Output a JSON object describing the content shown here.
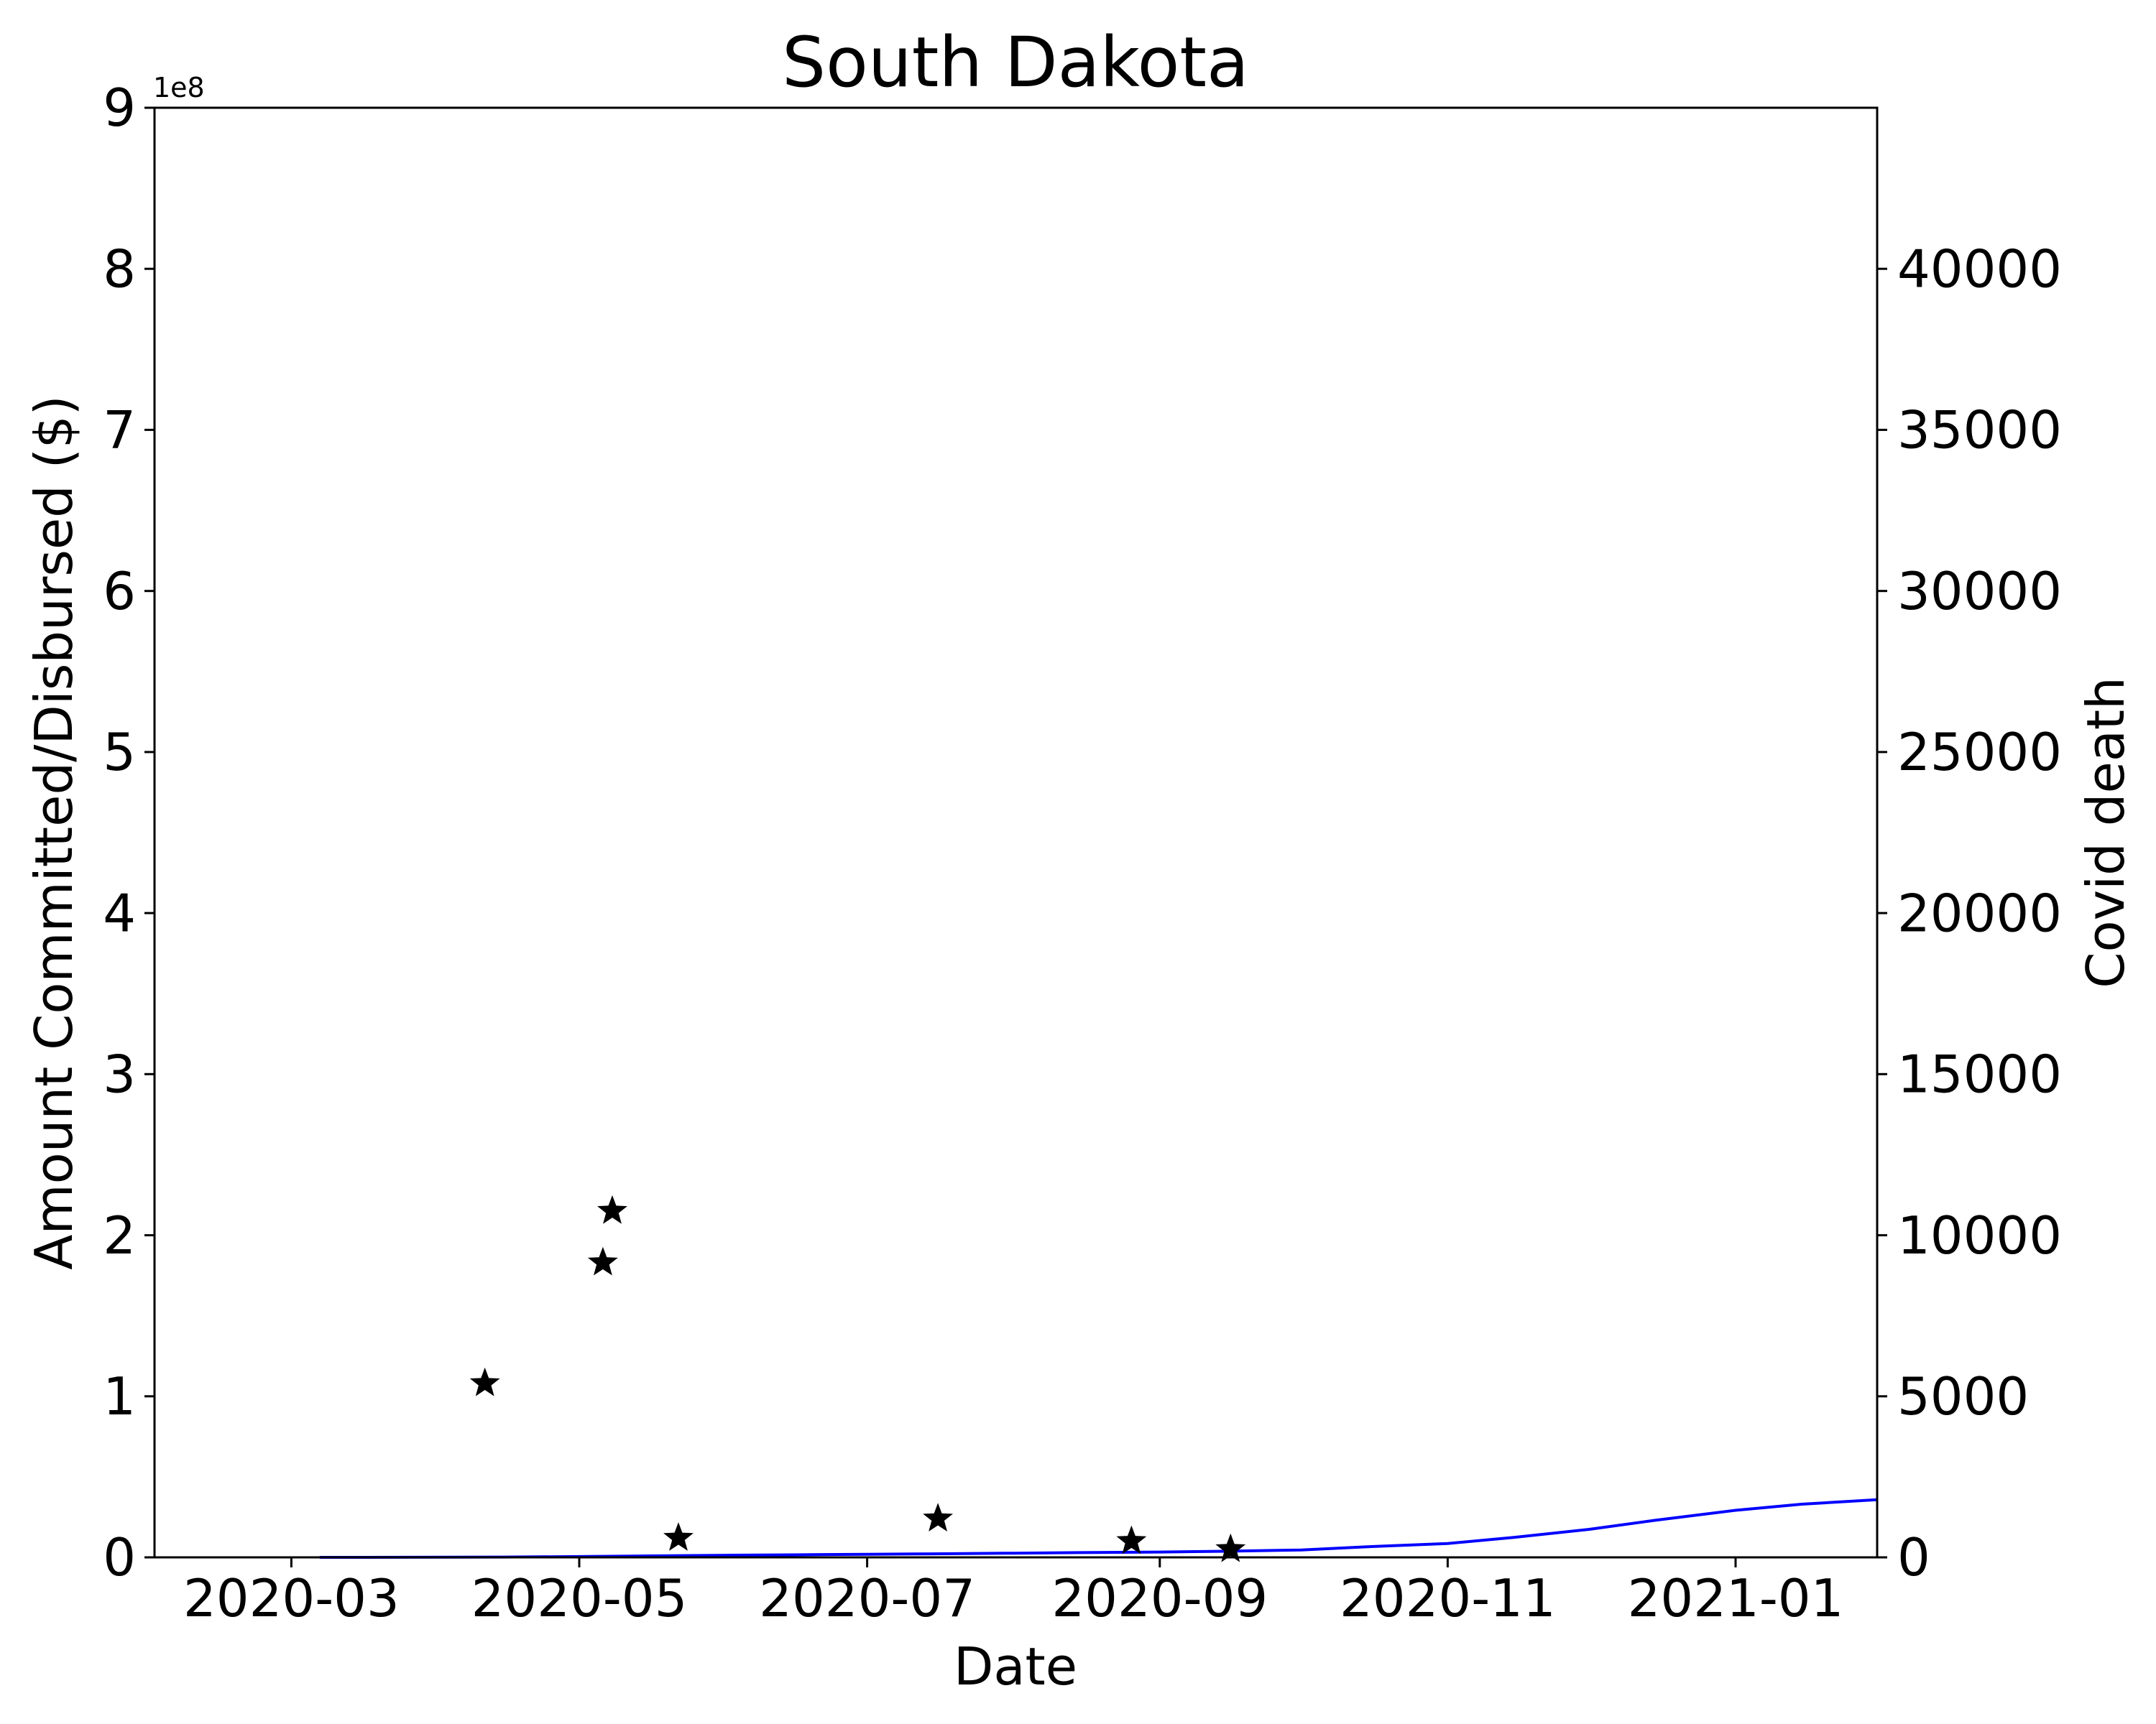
{
  "chart_data": {
    "type": "scatter+line",
    "title": "South Dakota",
    "xlabel": "Date",
    "ylabel_left": "Amount Committed/Disbursed ($)",
    "ylabel_right": "Covid death",
    "left_offset_label": "1e8",
    "colors": {
      "stars": "#000000",
      "deaths_line": "#0000ff",
      "right_label": "#0000ff"
    },
    "x_range": [
      "2020-02-01",
      "2021-01-31"
    ],
    "x_ticks": [
      "2020-03",
      "2020-05",
      "2020-07",
      "2020-09",
      "2020-11",
      "2021-01"
    ],
    "left_ylim": [
      0,
      9
    ],
    "left_ticks": [
      "0",
      "1",
      "2",
      "3",
      "4",
      "5",
      "6",
      "7",
      "8",
      "9"
    ],
    "right_ylim": [
      0,
      45000
    ],
    "right_ticks": [
      "0",
      "5000",
      "10000",
      "15000",
      "20000",
      "25000",
      "30000",
      "35000",
      "40000"
    ],
    "series": [
      {
        "name": "Amount Committed/Disbursed",
        "kind": "scatter",
        "marker": "star",
        "axis": "left",
        "unit_scale": "1e8",
        "points": [
          {
            "x": "2020-04-11",
            "y": 1.08
          },
          {
            "x": "2020-05-06",
            "y": 1.83
          },
          {
            "x": "2020-05-08",
            "y": 2.15
          },
          {
            "x": "2020-05-22",
            "y": 0.12
          },
          {
            "x": "2020-07-16",
            "y": 0.24
          },
          {
            "x": "2020-08-26",
            "y": 0.1
          },
          {
            "x": "2020-09-16",
            "y": 0.05
          }
        ]
      },
      {
        "name": "Covid death",
        "kind": "line",
        "axis": "right",
        "points": [
          {
            "x": "2020-03-07",
            "y": 0
          },
          {
            "x": "2020-03-25",
            "y": 2
          },
          {
            "x": "2020-04-15",
            "y": 10
          },
          {
            "x": "2020-05-01",
            "y": 25
          },
          {
            "x": "2020-05-15",
            "y": 45
          },
          {
            "x": "2020-06-01",
            "y": 65
          },
          {
            "x": "2020-06-15",
            "y": 78
          },
          {
            "x": "2020-07-01",
            "y": 95
          },
          {
            "x": "2020-07-15",
            "y": 110
          },
          {
            "x": "2020-08-01",
            "y": 130
          },
          {
            "x": "2020-08-15",
            "y": 148
          },
          {
            "x": "2020-09-01",
            "y": 165
          },
          {
            "x": "2020-09-15",
            "y": 190
          },
          {
            "x": "2020-10-01",
            "y": 230
          },
          {
            "x": "2020-10-15",
            "y": 330
          },
          {
            "x": "2020-11-01",
            "y": 430
          },
          {
            "x": "2020-11-15",
            "y": 620
          },
          {
            "x": "2020-12-01",
            "y": 870
          },
          {
            "x": "2020-12-15",
            "y": 1150
          },
          {
            "x": "2021-01-01",
            "y": 1460
          },
          {
            "x": "2021-01-15",
            "y": 1650
          },
          {
            "x": "2021-01-31",
            "y": 1790
          }
        ]
      }
    ]
  }
}
